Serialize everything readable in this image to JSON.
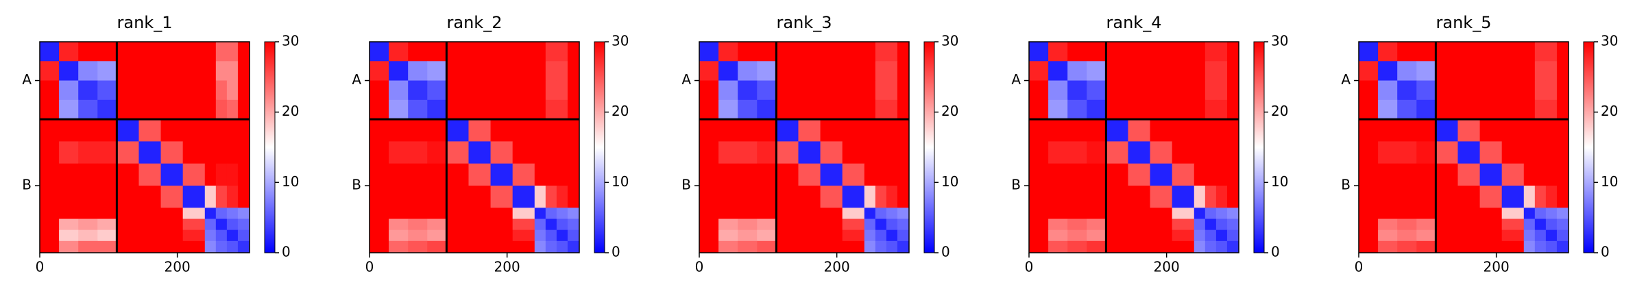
{
  "chart_data": [
    {
      "type": "heatmap",
      "title": "rank_1",
      "colormap": "bwr",
      "x_edges": [
        0,
        28,
        56,
        84,
        112,
        144,
        176,
        208,
        240,
        256,
        272,
        288,
        305
      ],
      "y_edges": [
        0,
        28,
        56,
        84,
        112,
        144,
        176,
        208,
        240,
        256,
        272,
        288,
        305
      ],
      "z": [
        [
          2,
          28,
          30,
          30,
          30,
          30,
          30,
          30,
          30,
          24,
          24,
          30
        ],
        [
          28,
          2,
          8,
          9,
          30,
          30,
          30,
          30,
          30,
          22,
          22,
          30
        ],
        [
          30,
          8,
          3,
          5,
          30,
          30,
          30,
          30,
          30,
          24,
          22,
          30
        ],
        [
          30,
          9,
          5,
          3,
          30,
          30,
          30,
          30,
          30,
          25,
          24,
          30
        ],
        [
          30,
          30,
          30,
          30,
          2,
          25,
          30,
          30,
          30,
          30,
          30,
          30
        ],
        [
          30,
          27,
          28,
          28,
          25,
          2,
          25,
          30,
          30,
          30,
          30,
          30
        ],
        [
          30,
          30,
          30,
          30,
          30,
          25,
          2,
          25,
          30,
          29,
          29,
          30
        ],
        [
          30,
          30,
          30,
          30,
          30,
          30,
          25,
          2,
          18,
          26,
          28,
          30
        ],
        [
          30,
          30,
          30,
          30,
          30,
          30,
          30,
          18,
          2,
          6,
          7,
          8
        ],
        [
          30,
          20,
          21,
          20,
          30,
          30,
          30,
          26,
          6,
          2,
          5,
          6
        ],
        [
          30,
          18,
          19,
          18,
          30,
          30,
          30,
          28,
          7,
          5,
          2,
          5
        ],
        [
          30,
          22,
          24,
          24,
          30,
          30,
          30,
          30,
          8,
          6,
          5,
          3
        ]
      ],
      "xlim": [
        0,
        305
      ],
      "ylim": [
        305,
        0
      ],
      "xticks": [
        0,
        200
      ],
      "yticks": [
        {
          "value": 56,
          "label": "A"
        },
        {
          "value": 208,
          "label": "B"
        }
      ],
      "chain_boundaries": [
        112
      ],
      "clim": [
        0,
        30
      ],
      "cticks": [
        0,
        10,
        20,
        30
      ]
    },
    {
      "type": "heatmap",
      "title": "rank_2",
      "colormap": "bwr",
      "x_edges": [
        0,
        28,
        56,
        84,
        112,
        144,
        176,
        208,
        240,
        256,
        272,
        288,
        305
      ],
      "y_edges": [
        0,
        28,
        56,
        84,
        112,
        144,
        176,
        208,
        240,
        256,
        272,
        288,
        305
      ],
      "z": [
        [
          2,
          28,
          30,
          30,
          30,
          30,
          30,
          30,
          30,
          27,
          27,
          30
        ],
        [
          28,
          2,
          8,
          9,
          30,
          30,
          30,
          30,
          30,
          26,
          26,
          30
        ],
        [
          30,
          8,
          3,
          5,
          30,
          30,
          30,
          30,
          30,
          26,
          26,
          30
        ],
        [
          30,
          9,
          5,
          3,
          30,
          30,
          30,
          30,
          30,
          27,
          27,
          30
        ],
        [
          30,
          30,
          30,
          30,
          2,
          25,
          30,
          30,
          30,
          30,
          30,
          30
        ],
        [
          30,
          28,
          28,
          29,
          25,
          2,
          25,
          30,
          30,
          30,
          30,
          30
        ],
        [
          30,
          30,
          30,
          30,
          30,
          25,
          2,
          25,
          30,
          30,
          30,
          30
        ],
        [
          30,
          30,
          30,
          30,
          30,
          30,
          25,
          2,
          18,
          26,
          28,
          30
        ],
        [
          30,
          30,
          30,
          30,
          30,
          30,
          30,
          18,
          2,
          6,
          7,
          8
        ],
        [
          30,
          22,
          23,
          22,
          30,
          30,
          30,
          26,
          6,
          2,
          5,
          6
        ],
        [
          30,
          21,
          22,
          21,
          30,
          30,
          30,
          28,
          7,
          5,
          2,
          5
        ],
        [
          30,
          24,
          25,
          26,
          30,
          30,
          30,
          30,
          8,
          6,
          5,
          3
        ]
      ],
      "xlim": [
        0,
        305
      ],
      "ylim": [
        305,
        0
      ],
      "xticks": [
        0,
        200
      ],
      "yticks": [
        {
          "value": 56,
          "label": "A"
        },
        {
          "value": 208,
          "label": "B"
        }
      ],
      "chain_boundaries": [
        112
      ],
      "clim": [
        0,
        30
      ],
      "cticks": [
        0,
        10,
        20,
        30
      ]
    },
    {
      "type": "heatmap",
      "title": "rank_3",
      "colormap": "bwr",
      "x_edges": [
        0,
        28,
        56,
        84,
        112,
        144,
        176,
        208,
        240,
        256,
        272,
        288,
        305
      ],
      "y_edges": [
        0,
        28,
        56,
        84,
        112,
        144,
        176,
        208,
        240,
        256,
        272,
        288,
        305
      ],
      "z": [
        [
          2,
          28,
          30,
          30,
          30,
          30,
          30,
          30,
          30,
          27,
          27,
          30
        ],
        [
          28,
          2,
          8,
          9,
          30,
          30,
          30,
          30,
          30,
          26,
          26,
          30
        ],
        [
          30,
          8,
          3,
          5,
          30,
          30,
          30,
          30,
          30,
          26,
          26,
          30
        ],
        [
          30,
          9,
          5,
          3,
          30,
          30,
          30,
          30,
          30,
          27,
          27,
          30
        ],
        [
          30,
          30,
          30,
          30,
          2,
          25,
          30,
          30,
          30,
          30,
          30,
          30
        ],
        [
          30,
          27,
          27,
          28,
          25,
          2,
          25,
          30,
          30,
          30,
          30,
          30
        ],
        [
          30,
          30,
          30,
          30,
          30,
          25,
          2,
          25,
          30,
          30,
          30,
          30
        ],
        [
          30,
          30,
          30,
          30,
          30,
          30,
          25,
          2,
          18,
          26,
          28,
          30
        ],
        [
          30,
          30,
          30,
          30,
          30,
          30,
          30,
          18,
          2,
          6,
          7,
          8
        ],
        [
          30,
          21,
          22,
          21,
          30,
          30,
          30,
          26,
          6,
          2,
          5,
          6
        ],
        [
          30,
          20,
          21,
          20,
          30,
          30,
          30,
          28,
          7,
          5,
          2,
          5
        ],
        [
          30,
          23,
          24,
          25,
          30,
          30,
          30,
          30,
          8,
          6,
          5,
          3
        ]
      ],
      "xlim": [
        0,
        305
      ],
      "ylim": [
        305,
        0
      ],
      "xticks": [
        0,
        200
      ],
      "yticks": [
        {
          "value": 56,
          "label": "A"
        },
        {
          "value": 208,
          "label": "B"
        }
      ],
      "chain_boundaries": [
        112
      ],
      "clim": [
        0,
        30
      ],
      "cticks": [
        0,
        10,
        20,
        30
      ]
    },
    {
      "type": "heatmap",
      "title": "rank_4",
      "colormap": "bwr",
      "x_edges": [
        0,
        28,
        56,
        84,
        112,
        144,
        176,
        208,
        240,
        256,
        272,
        288,
        305
      ],
      "y_edges": [
        0,
        28,
        56,
        84,
        112,
        144,
        176,
        208,
        240,
        256,
        272,
        288,
        305
      ],
      "z": [
        [
          2,
          28,
          30,
          30,
          30,
          30,
          30,
          30,
          30,
          28,
          28,
          30
        ],
        [
          28,
          2,
          8,
          9,
          30,
          30,
          30,
          30,
          30,
          27,
          27,
          30
        ],
        [
          30,
          8,
          3,
          5,
          30,
          30,
          30,
          30,
          30,
          27,
          27,
          30
        ],
        [
          30,
          9,
          5,
          3,
          30,
          30,
          30,
          30,
          30,
          28,
          28,
          30
        ],
        [
          30,
          30,
          30,
          30,
          2,
          25,
          30,
          30,
          30,
          30,
          30,
          30
        ],
        [
          30,
          28,
          28,
          29,
          25,
          2,
          25,
          30,
          30,
          30,
          30,
          30
        ],
        [
          30,
          30,
          30,
          30,
          30,
          25,
          2,
          25,
          30,
          30,
          30,
          30
        ],
        [
          30,
          30,
          30,
          30,
          30,
          30,
          25,
          2,
          18,
          26,
          28,
          30
        ],
        [
          30,
          30,
          30,
          30,
          30,
          30,
          30,
          18,
          2,
          6,
          7,
          8
        ],
        [
          30,
          23,
          24,
          23,
          30,
          30,
          30,
          26,
          6,
          2,
          5,
          6
        ],
        [
          30,
          22,
          23,
          22,
          30,
          30,
          30,
          28,
          7,
          5,
          2,
          5
        ],
        [
          30,
          25,
          26,
          27,
          30,
          30,
          30,
          30,
          8,
          6,
          5,
          3
        ]
      ],
      "xlim": [
        0,
        305
      ],
      "ylim": [
        305,
        0
      ],
      "xticks": [
        0,
        200
      ],
      "yticks": [
        {
          "value": 56,
          "label": "A"
        },
        {
          "value": 208,
          "label": "B"
        }
      ],
      "chain_boundaries": [
        112
      ],
      "clim": [
        0,
        30
      ],
      "cticks": [
        0,
        10,
        20,
        30
      ]
    },
    {
      "type": "heatmap",
      "title": "rank_5",
      "colormap": "bwr",
      "x_edges": [
        0,
        28,
        56,
        84,
        112,
        144,
        176,
        208,
        240,
        256,
        272,
        288,
        305
      ],
      "y_edges": [
        0,
        28,
        56,
        84,
        112,
        144,
        176,
        208,
        240,
        256,
        272,
        288,
        305
      ],
      "z": [
        [
          2,
          28,
          30,
          30,
          30,
          30,
          30,
          30,
          30,
          27,
          27,
          30
        ],
        [
          28,
          2,
          8,
          9,
          30,
          30,
          30,
          30,
          30,
          26,
          26,
          30
        ],
        [
          30,
          8,
          3,
          5,
          30,
          30,
          30,
          30,
          30,
          26,
          26,
          30
        ],
        [
          30,
          9,
          5,
          3,
          30,
          30,
          30,
          30,
          30,
          27,
          27,
          30
        ],
        [
          30,
          30,
          30,
          30,
          2,
          25,
          30,
          30,
          30,
          30,
          30,
          30
        ],
        [
          30,
          28,
          28,
          29,
          25,
          2,
          25,
          30,
          30,
          30,
          30,
          30
        ],
        [
          30,
          30,
          30,
          30,
          30,
          25,
          2,
          25,
          30,
          30,
          30,
          30
        ],
        [
          30,
          30,
          30,
          30,
          30,
          30,
          25,
          2,
          18,
          26,
          28,
          30
        ],
        [
          30,
          30,
          30,
          30,
          30,
          30,
          30,
          18,
          2,
          6,
          7,
          8
        ],
        [
          30,
          23,
          24,
          23,
          30,
          30,
          30,
          26,
          6,
          2,
          5,
          6
        ],
        [
          30,
          22,
          23,
          22,
          30,
          30,
          30,
          28,
          7,
          5,
          2,
          5
        ],
        [
          30,
          25,
          26,
          27,
          30,
          30,
          30,
          30,
          8,
          6,
          5,
          3
        ]
      ],
      "xlim": [
        0,
        305
      ],
      "ylim": [
        305,
        0
      ],
      "xticks": [
        0,
        200
      ],
      "yticks": [
        {
          "value": 56,
          "label": "A"
        },
        {
          "value": 208,
          "label": "B"
        }
      ],
      "chain_boundaries": [
        112
      ],
      "clim": [
        0,
        30
      ],
      "cticks": [
        0,
        10,
        20,
        30
      ]
    }
  ]
}
